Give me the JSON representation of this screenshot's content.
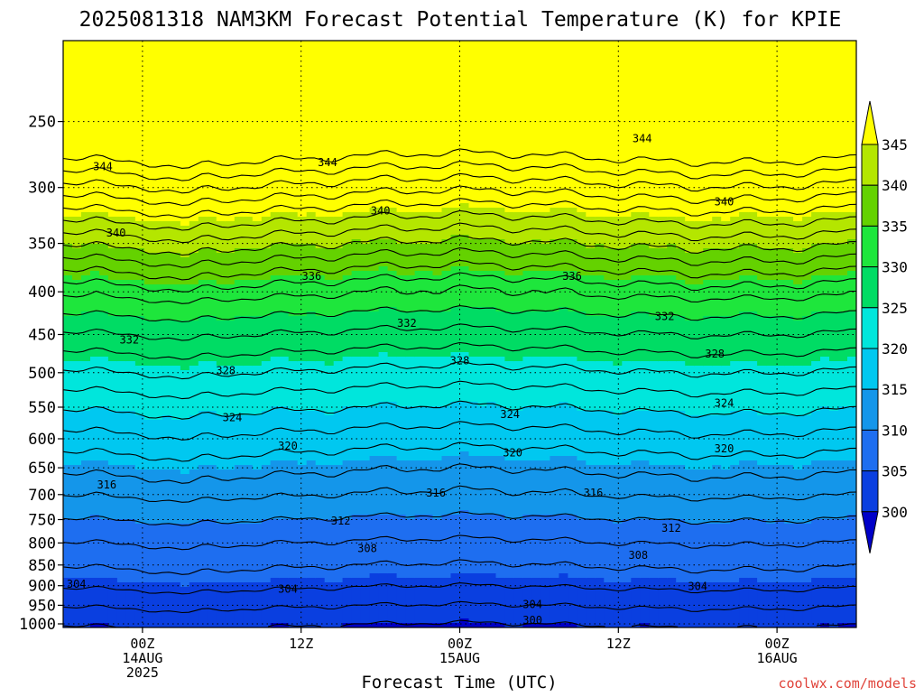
{
  "chart_data": {
    "type": "heatmap",
    "title": "2025081318 NAM3KM Forecast Potential Temperature (K) for KPIE",
    "xlabel": "Forecast Time (UTC)",
    "ylabel": "",
    "y_axis": {
      "ticks": [
        250,
        300,
        350,
        400,
        450,
        500,
        550,
        600,
        650,
        700,
        750,
        800,
        850,
        900,
        950,
        1000
      ],
      "scale": "log",
      "range": [
        200,
        1010
      ]
    },
    "x_axis": {
      "range_hours": [
        -6,
        54
      ],
      "ticks": [
        {
          "hour": 0,
          "lines": [
            "00Z",
            "14AUG",
            "2025"
          ]
        },
        {
          "hour": 12,
          "lines": [
            "12Z"
          ]
        },
        {
          "hour": 24,
          "lines": [
            "00Z",
            "15AUG"
          ]
        },
        {
          "hour": 36,
          "lines": [
            "12Z"
          ]
        },
        {
          "hour": 48,
          "lines": [
            "00Z",
            "16AUG"
          ]
        }
      ]
    },
    "colorbar": {
      "levels": [
        300,
        305,
        310,
        315,
        320,
        325,
        330,
        335,
        340,
        345
      ],
      "colors": [
        "#0000c8",
        "#0a3fe0",
        "#1e6ef0",
        "#1496ea",
        "#00c8f0",
        "#00e6dc",
        "#00dc64",
        "#1ee63c",
        "#64d200",
        "#b4e600",
        "#ffff00"
      ]
    },
    "contour_interval_K": 2,
    "contour_labels": [
      {
        "value": 344,
        "hour": -3,
        "p": 283
      },
      {
        "value": 344,
        "hour": 14,
        "p": 280
      },
      {
        "value": 344,
        "hour": 37.8,
        "p": 262
      },
      {
        "value": 340,
        "hour": -2,
        "p": 340
      },
      {
        "value": 340,
        "hour": 18,
        "p": 320
      },
      {
        "value": 340,
        "hour": 44,
        "p": 312
      },
      {
        "value": 336,
        "hour": 12.8,
        "p": 383
      },
      {
        "value": 336,
        "hour": 32.5,
        "p": 383
      },
      {
        "value": 332,
        "hour": -1,
        "p": 457
      },
      {
        "value": 332,
        "hour": 20,
        "p": 436
      },
      {
        "value": 332,
        "hour": 39.5,
        "p": 428
      },
      {
        "value": 328,
        "hour": 6.3,
        "p": 497
      },
      {
        "value": 328,
        "hour": 24,
        "p": 484
      },
      {
        "value": 328,
        "hour": 43.3,
        "p": 475
      },
      {
        "value": 324,
        "hour": 6.8,
        "p": 566
      },
      {
        "value": 324,
        "hour": 27.8,
        "p": 561
      },
      {
        "value": 324,
        "hour": 44,
        "p": 544
      },
      {
        "value": 320,
        "hour": 11,
        "p": 612
      },
      {
        "value": 320,
        "hour": 28,
        "p": 624
      },
      {
        "value": 320,
        "hour": 44,
        "p": 617
      },
      {
        "value": 316,
        "hour": -2.7,
        "p": 681
      },
      {
        "value": 316,
        "hour": 22.2,
        "p": 697
      },
      {
        "value": 316,
        "hour": 34.1,
        "p": 697
      },
      {
        "value": 312,
        "hour": 15,
        "p": 753
      },
      {
        "value": 312,
        "hour": 40,
        "p": 768
      },
      {
        "value": 308,
        "hour": 17,
        "p": 812
      },
      {
        "value": 308,
        "hour": 37.5,
        "p": 828
      },
      {
        "value": 304,
        "hour": -5,
        "p": 896
      },
      {
        "value": 304,
        "hour": 11,
        "p": 908
      },
      {
        "value": 304,
        "hour": 29.5,
        "p": 948
      },
      {
        "value": 304,
        "hour": 42,
        "p": 902
      },
      {
        "value": 300,
        "hour": 29.5,
        "p": 990
      }
    ],
    "surface_fill_color": "#a0522d"
  },
  "credit": "coolwx.com/models"
}
